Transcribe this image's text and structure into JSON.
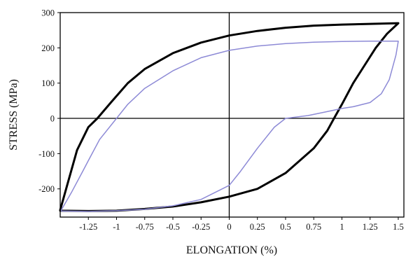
{
  "chart_data": {
    "type": "line",
    "xlabel": "ELONGATION (%)",
    "ylabel": "STRESS (MPa)",
    "xlim": [
      -1.5,
      1.55
    ],
    "ylim": [
      -280,
      300
    ],
    "x_ticks": [
      -1.25,
      -1,
      -0.75,
      -0.5,
      -0.25,
      0,
      0.25,
      0.5,
      0.75,
      1,
      1.25,
      1.5
    ],
    "x_tick_labels": [
      "-1.25",
      "-1",
      "-0.75",
      "-0.5",
      "-0.25",
      "0",
      "0.25",
      "0.5",
      "0.75",
      "1",
      "1.25",
      "1.5"
    ],
    "y_ticks": [
      300,
      200,
      100,
      0,
      -100,
      -200
    ],
    "y_tick_labels": [
      "300",
      "200",
      "100",
      "0",
      "-100",
      "-200"
    ],
    "zero_lines": true,
    "grid": false,
    "legend": "none",
    "series": [
      {
        "color": "#000000",
        "points": [
          [
            -1.5,
            -260
          ],
          [
            -1.43,
            -180
          ],
          [
            -1.35,
            -90
          ],
          [
            -1.25,
            -25
          ],
          [
            -1.17,
            0
          ],
          [
            -1.05,
            45
          ],
          [
            -0.9,
            100
          ],
          [
            -0.75,
            140
          ],
          [
            -0.5,
            185
          ],
          [
            -0.25,
            215
          ],
          [
            0,
            235
          ],
          [
            0.25,
            248
          ],
          [
            0.5,
            257
          ],
          [
            0.75,
            263
          ],
          [
            1,
            266
          ],
          [
            1.25,
            268
          ],
          [
            1.5,
            270
          ],
          [
            1.4,
            240
          ],
          [
            1.3,
            200
          ],
          [
            1.2,
            150
          ],
          [
            1.1,
            100
          ],
          [
            1.0,
            40
          ],
          [
            0.93,
            0
          ],
          [
            0.87,
            -35
          ],
          [
            0.75,
            -85
          ],
          [
            0.5,
            -155
          ],
          [
            0.25,
            -200
          ],
          [
            0,
            -222
          ],
          [
            -0.25,
            -238
          ],
          [
            -0.5,
            -250
          ],
          [
            -0.75,
            -257
          ],
          [
            -1,
            -262
          ],
          [
            -1.25,
            -263
          ],
          [
            -1.5,
            -262
          ]
        ]
      },
      {
        "color": "#8d8ad6",
        "points": [
          [
            -1.49,
            -260
          ],
          [
            -1.4,
            -210
          ],
          [
            -1.3,
            -150
          ],
          [
            -1.25,
            -120
          ],
          [
            -1.15,
            -60
          ],
          [
            -1,
            0
          ],
          [
            -0.9,
            40
          ],
          [
            -0.75,
            85
          ],
          [
            -0.5,
            135
          ],
          [
            -0.25,
            172
          ],
          [
            0,
            193
          ],
          [
            0.25,
            205
          ],
          [
            0.5,
            212
          ],
          [
            0.75,
            216
          ],
          [
            1,
            218
          ],
          [
            1.25,
            219
          ],
          [
            1.5,
            219
          ],
          [
            1.48,
            180
          ],
          [
            1.42,
            110
          ],
          [
            1.35,
            70
          ],
          [
            1.25,
            45
          ],
          [
            1.1,
            33
          ],
          [
            1,
            28
          ],
          [
            0.85,
            18
          ],
          [
            0.7,
            8
          ],
          [
            0.5,
            0
          ],
          [
            0.4,
            -25
          ],
          [
            0.25,
            -85
          ],
          [
            0.1,
            -150
          ],
          [
            0,
            -190
          ],
          [
            -0.25,
            -230
          ],
          [
            -0.5,
            -248
          ],
          [
            -0.75,
            -258
          ],
          [
            -1,
            -262
          ],
          [
            -1.25,
            -264
          ],
          [
            -1.49,
            -263
          ]
        ]
      }
    ]
  }
}
